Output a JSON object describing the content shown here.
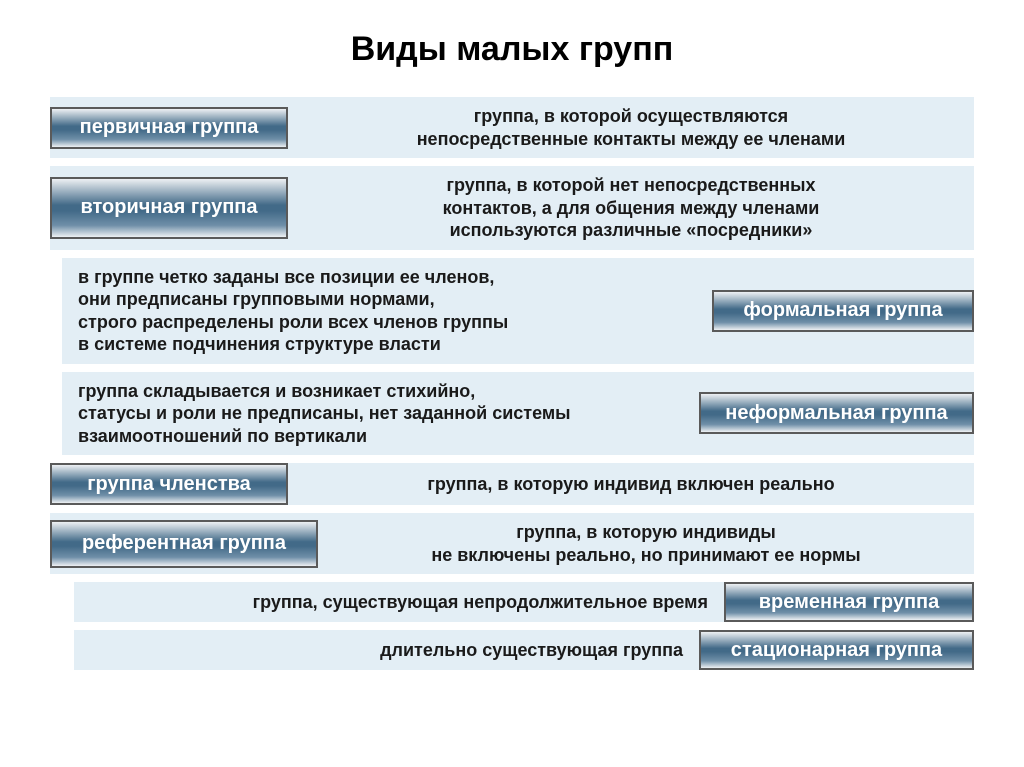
{
  "title": "Виды малых групп",
  "title_fontsize": 34,
  "colors": {
    "row_bg": "#e3eef5",
    "badge_gradient_top": "#edf0f3",
    "badge_gradient_mid": "#426a88",
    "badge_gradient_bot": "#6f8fa8",
    "badge_border": "#5a5a5a",
    "badge_text": "#ffffff",
    "desc_text": "#1a1a1a"
  },
  "rows": [
    {
      "badge": "первичная группа",
      "badge_side": "left",
      "badge_width": 238,
      "badge_height": 42,
      "desc": "группа, в которой осуществляются\nнепосредственные контакты между ее членами",
      "desc_align": "center",
      "indent": 0
    },
    {
      "badge": "вторичная группа",
      "badge_side": "left",
      "badge_width": 238,
      "badge_height": 62,
      "desc": "группа, в которой нет непосредственных\nконтактов, а для общения между членами\nиспользуются различные «посредники»",
      "desc_align": "center",
      "indent": 0
    },
    {
      "badge": "формальная группа",
      "badge_side": "right",
      "badge_width": 262,
      "badge_height": 42,
      "desc": "в группе четко заданы все позиции ее членов,\nони предписаны групповыми нормами,\nстрого распределены роли всех членов группы\nв системе подчинения структуре власти",
      "desc_align": "left",
      "indent": 1
    },
    {
      "badge": "неформальная группа",
      "badge_side": "right",
      "badge_width": 275,
      "badge_height": 42,
      "desc": "группа складывается и возникает стихийно,\nстатусы и роли не предписаны, нет заданной системы\n взаимоотношений по вертикали",
      "desc_align": "left",
      "indent": 1
    },
    {
      "badge": "группа членства",
      "badge_side": "left",
      "badge_width": 238,
      "badge_height": 42,
      "desc": "группа, в которую индивид включен реально",
      "desc_align": "center",
      "indent": 0
    },
    {
      "badge": "референтная группа",
      "badge_side": "left",
      "badge_width": 268,
      "badge_height": 48,
      "desc": "группа, в которую индивиды\nне включены реально, но принимают ее нормы",
      "desc_align": "center",
      "indent": 0
    },
    {
      "badge": "временная группа",
      "badge_side": "right",
      "badge_width": 250,
      "badge_height": 40,
      "desc": "группа, существующая непродолжительное время",
      "desc_align": "right",
      "indent": 2
    },
    {
      "badge": "стационарная группа",
      "badge_side": "right",
      "badge_width": 275,
      "badge_height": 40,
      "desc": "длительно существующая группа",
      "desc_align": "right",
      "indent": 2
    }
  ]
}
